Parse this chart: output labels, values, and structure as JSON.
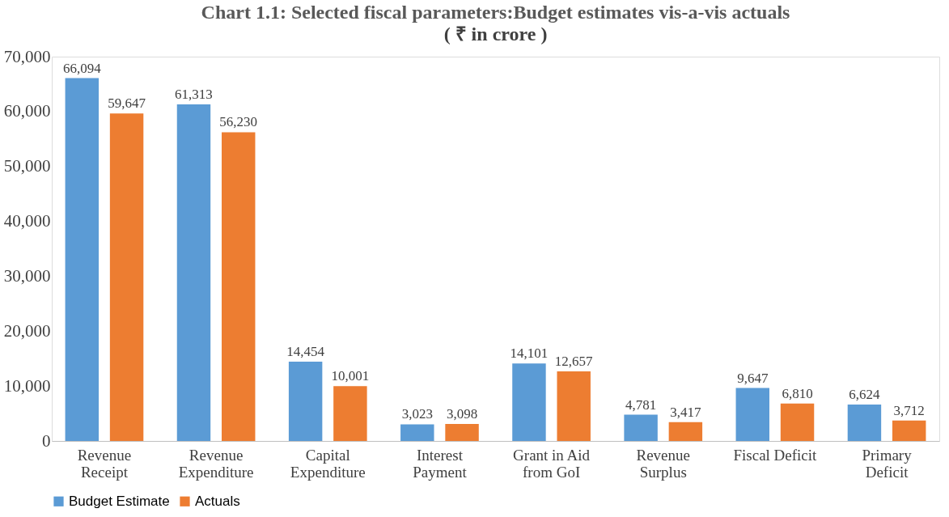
{
  "chart_data": {
    "type": "bar",
    "title": "Chart 1.1: Selected fiscal parameters:Budget estimates vis-a-vis actuals",
    "subtitle": "( ₹ in crore )",
    "categories": [
      "Revenue Receipt",
      "Revenue Expenditure",
      "Capital Expenditure",
      "Interest Payment",
      "Grant in Aid from GoI",
      "Revenue Surplus",
      "Fiscal Deficit",
      "Primary Deficit"
    ],
    "series": [
      {
        "name": "Budget Estimate",
        "color": "#5b9bd5",
        "values": [
          66094,
          61313,
          14454,
          3023,
          14101,
          4781,
          9647,
          6624
        ],
        "value_labels": [
          "66,094",
          "61,313",
          "14,454",
          "3,023",
          "14,101",
          "4,781",
          "9,647",
          "6,624"
        ]
      },
      {
        "name": "Actuals",
        "color": "#ed7d31",
        "values": [
          59647,
          56230,
          10001,
          3098,
          12657,
          3417,
          6810,
          3712
        ],
        "value_labels": [
          "59,647",
          "56,230",
          "10,001",
          "3,098",
          "12,657",
          "3,417",
          "6,810",
          "3,712"
        ]
      }
    ],
    "ylim": [
      0,
      70000
    ],
    "yticks": [
      0,
      {
        "value": 10000,
        "label": "10,000"
      },
      {
        "value": 20000,
        "label": "20,000"
      },
      {
        "value": 30000,
        "label": "30,000"
      },
      {
        "value": 40000,
        "label": "40,000"
      },
      {
        "value": 50000,
        "label": "50,000"
      },
      {
        "value": 60000,
        "label": "60,000"
      },
      {
        "value": 70000,
        "label": "70,000"
      }
    ],
    "grid": false,
    "legend": "bottom"
  }
}
